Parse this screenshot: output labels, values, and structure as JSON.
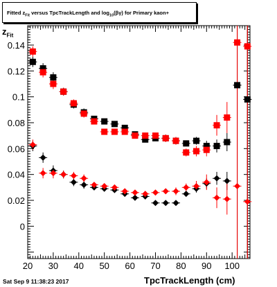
{
  "chart_data": {
    "type": "scatter",
    "title": "Fitted z_{Fit} versus TpcTrackLength and log_{10}(βγ) for Primary kaon+",
    "ylabel": "z_{Fit}",
    "xlabel": "TpcTrackLength (cm)",
    "xlim": [
      20,
      107
    ],
    "ylim": [
      -0.025,
      0.155
    ],
    "x_ticks": [
      20,
      30,
      40,
      50,
      60,
      70,
      80,
      90,
      100
    ],
    "y_ticks": [
      0,
      0.02,
      0.04,
      0.06,
      0.08,
      0.1,
      0.12,
      0.14
    ],
    "x_tick_labels": [
      "20",
      "30",
      "40",
      "50",
      "60",
      "70",
      "80",
      "90",
      "100"
    ],
    "y_tick_labels": [
      "0",
      "0.02",
      "0.04",
      "0.06",
      "0.08",
      "0.1",
      "0.12",
      "0.14"
    ],
    "series": [
      {
        "color": "#000000",
        "marker": "square",
        "points": [
          {
            "x": 22,
            "y": 0.127,
            "ye": 0.004
          },
          {
            "x": 26,
            "y": 0.122,
            "ye": 0.004
          },
          {
            "x": 30,
            "y": 0.115,
            "ye": 0.004
          },
          {
            "x": 34,
            "y": 0.104,
            "ye": 0.003
          },
          {
            "x": 38,
            "y": 0.094,
            "ye": 0.003
          },
          {
            "x": 42,
            "y": 0.088,
            "ye": 0.003
          },
          {
            "x": 46,
            "y": 0.083,
            "ye": 0.002
          },
          {
            "x": 50,
            "y": 0.081,
            "ye": 0.002
          },
          {
            "x": 54,
            "y": 0.079,
            "ye": 0.002
          },
          {
            "x": 58,
            "y": 0.076,
            "ye": 0.002
          },
          {
            "x": 62,
            "y": 0.071,
            "ye": 0.002
          },
          {
            "x": 66,
            "y": 0.067,
            "ye": 0.002
          },
          {
            "x": 70,
            "y": 0.068,
            "ye": 0.002
          },
          {
            "x": 74,
            "y": 0.068,
            "ye": 0.002
          },
          {
            "x": 78,
            "y": 0.066,
            "ye": 0.002
          },
          {
            "x": 82,
            "y": 0.064,
            "ye": 0.002
          },
          {
            "x": 86,
            "y": 0.066,
            "ye": 0.003
          },
          {
            "x": 90,
            "y": 0.062,
            "ye": 0.004
          },
          {
            "x": 94,
            "y": 0.062,
            "ye": 0.005
          },
          {
            "x": 98,
            "y": 0.065,
            "ye": 0.007
          },
          {
            "x": 102,
            "y": 0.109,
            "ye": 0.3
          },
          {
            "x": 106,
            "y": 0.098,
            "ye": 0.3
          }
        ]
      },
      {
        "color": "#ff0000",
        "marker": "square",
        "points": [
          {
            "x": 22,
            "y": 0.135,
            "ye": 0.004
          },
          {
            "x": 26,
            "y": 0.119,
            "ye": 0.004
          },
          {
            "x": 30,
            "y": 0.11,
            "ye": 0.004
          },
          {
            "x": 34,
            "y": 0.104,
            "ye": 0.003
          },
          {
            "x": 38,
            "y": 0.095,
            "ye": 0.003
          },
          {
            "x": 42,
            "y": 0.087,
            "ye": 0.003
          },
          {
            "x": 46,
            "y": 0.081,
            "ye": 0.002
          },
          {
            "x": 50,
            "y": 0.073,
            "ye": 0.002
          },
          {
            "x": 54,
            "y": 0.073,
            "ye": 0.002
          },
          {
            "x": 58,
            "y": 0.073,
            "ye": 0.002
          },
          {
            "x": 62,
            "y": 0.07,
            "ye": 0.002
          },
          {
            "x": 66,
            "y": 0.07,
            "ye": 0.002
          },
          {
            "x": 70,
            "y": 0.07,
            "ye": 0.002
          },
          {
            "x": 74,
            "y": 0.068,
            "ye": 0.003
          },
          {
            "x": 78,
            "y": 0.066,
            "ye": 0.003
          },
          {
            "x": 82,
            "y": 0.057,
            "ye": 0.003
          },
          {
            "x": 86,
            "y": 0.058,
            "ye": 0.004
          },
          {
            "x": 90,
            "y": 0.059,
            "ye": 0.005
          },
          {
            "x": 94,
            "y": 0.078,
            "ye": 0.008
          },
          {
            "x": 98,
            "y": 0.084,
            "ye": 0.012
          },
          {
            "x": 102,
            "y": 0.142,
            "ye": 0.3
          },
          {
            "x": 106,
            "y": 0.139,
            "ye": 0.3
          }
        ]
      },
      {
        "color": "#000000",
        "marker": "diamond",
        "points": [
          {
            "x": 22,
            "y": 0.062,
            "ye": 0.004
          },
          {
            "x": 26,
            "y": 0.053,
            "ye": 0.004
          },
          {
            "x": 30,
            "y": 0.043,
            "ye": 0.004
          },
          {
            "x": 34,
            "y": 0.04,
            "ye": 0.003
          },
          {
            "x": 38,
            "y": 0.034,
            "ye": 0.003
          },
          {
            "x": 42,
            "y": 0.032,
            "ye": 0.003
          },
          {
            "x": 46,
            "y": 0.03,
            "ye": 0.002
          },
          {
            "x": 50,
            "y": 0.029,
            "ye": 0.002
          },
          {
            "x": 54,
            "y": 0.028,
            "ye": 0.002
          },
          {
            "x": 58,
            "y": 0.025,
            "ye": 0.002
          },
          {
            "x": 62,
            "y": 0.022,
            "ye": 0.002
          },
          {
            "x": 66,
            "y": 0.023,
            "ye": 0.002
          },
          {
            "x": 70,
            "y": 0.018,
            "ye": 0.002
          },
          {
            "x": 74,
            "y": 0.018,
            "ye": 0.002
          },
          {
            "x": 78,
            "y": 0.018,
            "ye": 0.002
          },
          {
            "x": 82,
            "y": 0.025,
            "ye": 0.002
          },
          {
            "x": 86,
            "y": 0.029,
            "ye": 0.003
          },
          {
            "x": 90,
            "y": 0.033,
            "ye": 0.004
          },
          {
            "x": 94,
            "y": 0.037,
            "ye": 0.005
          },
          {
            "x": 98,
            "y": 0.035,
            "ye": 0.007
          },
          {
            "x": 102,
            "y": 0.109,
            "ye": 0.3
          },
          {
            "x": 106,
            "y": 0.098,
            "ye": 0.3
          }
        ]
      },
      {
        "color": "#ff0000",
        "marker": "diamond",
        "points": [
          {
            "x": 22,
            "y": 0.063,
            "ye": 0.004
          },
          {
            "x": 26,
            "y": 0.041,
            "ye": 0.004
          },
          {
            "x": 30,
            "y": 0.041,
            "ye": 0.004
          },
          {
            "x": 34,
            "y": 0.04,
            "ye": 0.003
          },
          {
            "x": 38,
            "y": 0.039,
            "ye": 0.003
          },
          {
            "x": 42,
            "y": 0.037,
            "ye": 0.003
          },
          {
            "x": 46,
            "y": 0.032,
            "ye": 0.002
          },
          {
            "x": 50,
            "y": 0.031,
            "ye": 0.002
          },
          {
            "x": 54,
            "y": 0.03,
            "ye": 0.002
          },
          {
            "x": 58,
            "y": 0.027,
            "ye": 0.002
          },
          {
            "x": 62,
            "y": 0.026,
            "ye": 0.002
          },
          {
            "x": 66,
            "y": 0.025,
            "ye": 0.002
          },
          {
            "x": 70,
            "y": 0.026,
            "ye": 0.002
          },
          {
            "x": 74,
            "y": 0.027,
            "ye": 0.002
          },
          {
            "x": 78,
            "y": 0.027,
            "ye": 0.003
          },
          {
            "x": 82,
            "y": 0.03,
            "ye": 0.003
          },
          {
            "x": 86,
            "y": 0.031,
            "ye": 0.004
          },
          {
            "x": 90,
            "y": 0.034,
            "ye": 0.006
          },
          {
            "x": 94,
            "y": 0.022,
            "ye": 0.008
          },
          {
            "x": 98,
            "y": 0.021,
            "ye": 0.012
          },
          {
            "x": 102,
            "y": 0.031,
            "ye": 0.3
          },
          {
            "x": 106,
            "y": 0.019,
            "ye": 0.3
          }
        ]
      }
    ],
    "grid": false,
    "legend": "none"
  },
  "title_box": {
    "prefix": "Fitted  z",
    "sub1": "Fit",
    "mid": " versus TpcTrackLength and log",
    "sub2": "10",
    "suffix": "(βγ) for Primary kaon+"
  },
  "ylabel": {
    "main": "z",
    "sub": "Fit"
  },
  "xlabel": "TpcTrackLength (cm)",
  "datestamp": "Sat Sep  9 11:38:23 2017"
}
